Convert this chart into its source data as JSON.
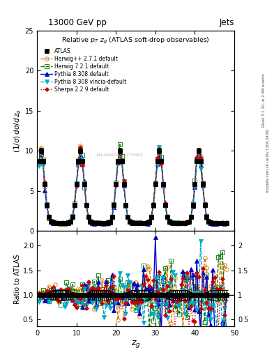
{
  "title_top": "13000 GeV pp",
  "title_right": "Jets",
  "plot_title": "Relative $p_T$ $z_g$ (ATLAS soft-drop observables)",
  "ylabel_main": "$(1/\\sigma)\\,d\\sigma/d\\,z_g$",
  "ylabel_ratio": "Ratio to ATLAS",
  "xlabel": "$z_g$",
  "rivet_label": "Rivet 3.1.10, ≥ 2.9M events",
  "arxiv_label": "mcplots.cern.ch [arXiv:1306.3436]",
  "atlas_watermark": "ATLAS2019_I1772062",
  "ylim_main": [
    0,
    25
  ],
  "ylim_ratio": [
    0.35,
    2.3
  ],
  "yticks_main": [
    0,
    5,
    10,
    15,
    20,
    25
  ],
  "yticks_ratio": [
    0.5,
    1.0,
    1.5,
    2.0
  ],
  "xticks": [
    0,
    10,
    20,
    30,
    40,
    50
  ],
  "xmin": 0,
  "xmax": 50,
  "peak_positions": [
    1,
    11,
    21,
    31,
    41
  ],
  "series": [
    {
      "label": "ATLAS",
      "color": "#000000",
      "marker": "s",
      "markersize": 4,
      "linestyle": "none",
      "linewidth": 1.0,
      "fillstyle": "full",
      "is_data": true
    },
    {
      "label": "Herwig++ 2.7.1 default",
      "color": "#cc7700",
      "marker": "o",
      "markersize": 4,
      "linestyle": "--",
      "linewidth": 1.0,
      "fillstyle": "none",
      "is_data": false
    },
    {
      "label": "Herwig 7.2.1 default",
      "color": "#007700",
      "marker": "s",
      "markersize": 4,
      "linestyle": "--",
      "linewidth": 1.0,
      "fillstyle": "none",
      "is_data": false
    },
    {
      "label": "Pythia 8.308 default",
      "color": "#0000cc",
      "marker": "^",
      "markersize": 4,
      "linestyle": "-",
      "linewidth": 1.0,
      "fillstyle": "full",
      "is_data": false
    },
    {
      "label": "Pythia 8.308 vincia-default",
      "color": "#00aacc",
      "marker": "v",
      "markersize": 4,
      "linestyle": "--",
      "linewidth": 1.0,
      "fillstyle": "full",
      "is_data": false
    },
    {
      "label": "Sherpa 2.2.9 default",
      "color": "#cc0000",
      "marker": "D",
      "markersize": 3,
      "linestyle": ":",
      "linewidth": 1.0,
      "fillstyle": "full",
      "is_data": false
    }
  ],
  "band_yellow": [
    0.87,
    1.13
  ],
  "band_green": [
    0.93,
    1.07
  ],
  "background_color": "#ffffff"
}
